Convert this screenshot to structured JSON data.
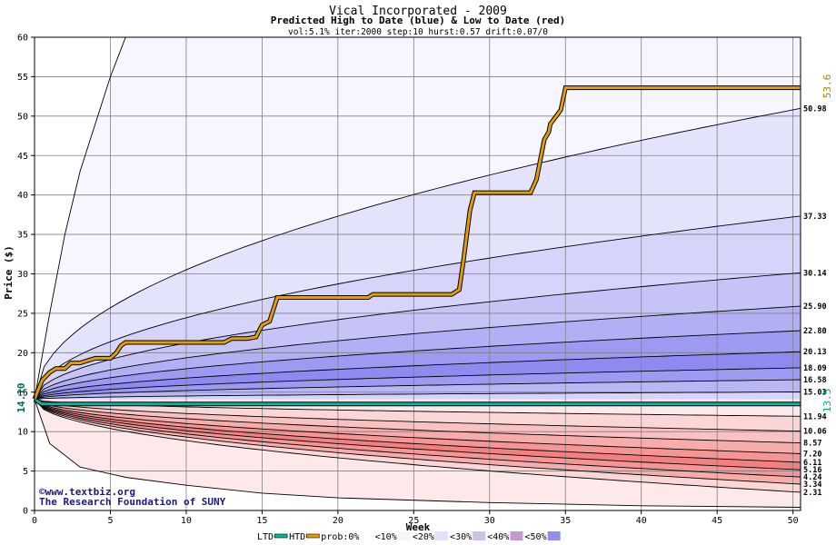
{
  "chart_data": {
    "type": "area",
    "title": "Vical Incorporated - 2009",
    "subtitle": "Predicted High to Date (blue) &  Low to Date (red)",
    "params": "vol:5.1% iter:2000 step:10 hurst:0.57 drift:0.07/0",
    "xlabel": "Week",
    "ylabel": "Price ($)",
    "xlim": [
      0,
      50.5
    ],
    "ylim": [
      0,
      60
    ],
    "x_ticks": [
      0,
      5,
      10,
      15,
      20,
      25,
      30,
      35,
      40,
      45,
      50
    ],
    "y_ticks": [
      0,
      5,
      10,
      15,
      20,
      25,
      30,
      35,
      40,
      45,
      50,
      55,
      60
    ],
    "grid": true,
    "start_price": 14.1,
    "start_price_label": "14.10",
    "high_percentile_ends": [
      50.98,
      37.33,
      30.14,
      25.9,
      22.8,
      20.13,
      18.09,
      16.58,
      15.03
    ],
    "high_percentile_labels": [
      "50.98",
      "37.33",
      "30.14",
      "25.90",
      "22.80",
      "20.13",
      "18.09",
      "16.58",
      "15.03"
    ],
    "low_percentile_ends": [
      11.94,
      10.06,
      8.57,
      7.2,
      6.11,
      5.16,
      4.24,
      3.34,
      2.31
    ],
    "low_percentile_labels": [
      "11.94",
      "10.06",
      "8.57",
      "7.20",
      "6.11",
      "5.16",
      "4.24",
      "3.34",
      "2.31"
    ],
    "htd_actual": {
      "name": "HTD",
      "final_label": "53.6",
      "color": "#e0a000",
      "points": [
        [
          0,
          14.1
        ],
        [
          0.5,
          16.5
        ],
        [
          1,
          17.5
        ],
        [
          1.4,
          18
        ],
        [
          2,
          18
        ],
        [
          2.4,
          18.7
        ],
        [
          3,
          18.7
        ],
        [
          3.5,
          19
        ],
        [
          4,
          19.3
        ],
        [
          5,
          19.3
        ],
        [
          5.4,
          20
        ],
        [
          5.7,
          20.9
        ],
        [
          6,
          21.3
        ],
        [
          7,
          21.3
        ],
        [
          12.5,
          21.3
        ],
        [
          13,
          21.8
        ],
        [
          14,
          21.8
        ],
        [
          14.6,
          22
        ],
        [
          15,
          23.5
        ],
        [
          15.5,
          24
        ],
        [
          16,
          27
        ],
        [
          22,
          27
        ],
        [
          22.3,
          27.4
        ],
        [
          27.5,
          27.4
        ],
        [
          28,
          28
        ],
        [
          28.3,
          32
        ],
        [
          28.7,
          38
        ],
        [
          29,
          40.3
        ],
        [
          32.7,
          40.3
        ],
        [
          33.1,
          42
        ],
        [
          33.6,
          47
        ],
        [
          33.9,
          48
        ],
        [
          34,
          49
        ],
        [
          34.4,
          50
        ],
        [
          34.7,
          50.8
        ],
        [
          35,
          53.6
        ],
        [
          50.5,
          53.6
        ]
      ]
    },
    "ltd_actual": {
      "name": "LTD",
      "final_label": "13.5",
      "color": "#00b8a0",
      "points": [
        [
          0,
          14.1
        ],
        [
          0.5,
          13.5
        ],
        [
          50.5,
          13.5
        ]
      ]
    },
    "upper_envelope": [
      [
        0,
        14.1
      ],
      [
        1,
        25
      ],
      [
        2,
        35
      ],
      [
        3,
        43
      ],
      [
        4,
        49
      ],
      [
        5,
        55
      ],
      [
        6,
        60
      ]
    ],
    "lower_envelope": [
      [
        0,
        14.1
      ],
      [
        1,
        8.5
      ],
      [
        3,
        5.5
      ],
      [
        6,
        4.2
      ],
      [
        10,
        3.2
      ],
      [
        15,
        2.2
      ],
      [
        20,
        1.6
      ],
      [
        30,
        1
      ],
      [
        40,
        0.6
      ],
      [
        50.5,
        0.4
      ]
    ],
    "legend": {
      "items": [
        {
          "label": "LTD",
          "color": "#00b8a0"
        },
        {
          "label": "HTD",
          "color": "#e0a000"
        },
        {
          "label": "prob:0%",
          "color": "#ffffff"
        },
        {
          "label": "<10%",
          "color": "#f6f4ff"
        },
        {
          "label": "<20%",
          "color": "#e2e0fb"
        },
        {
          "label": "<30%",
          "color": "#cfc0e8"
        },
        {
          "label": "<40%",
          "color": "#c59ad0"
        },
        {
          "label": "<50%",
          "color": "#9090ee"
        }
      ]
    },
    "watermark_line1": "©www.textbiz.org",
    "watermark_line2": "The Research Foundation of SUNY"
  }
}
